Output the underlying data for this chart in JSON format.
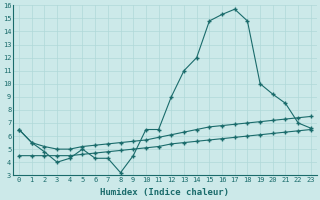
{
  "xlabel": "Humidex (Indice chaleur)",
  "xlim": [
    -0.5,
    23.5
  ],
  "ylim": [
    3,
    16
  ],
  "yticks": [
    3,
    4,
    5,
    6,
    7,
    8,
    9,
    10,
    11,
    12,
    13,
    14,
    15,
    16
  ],
  "xticks": [
    0,
    1,
    2,
    3,
    4,
    5,
    6,
    7,
    8,
    9,
    10,
    11,
    12,
    13,
    14,
    15,
    16,
    17,
    18,
    19,
    20,
    21,
    22,
    23
  ],
  "bg_color": "#cce9e9",
  "line_color": "#1a6b6b",
  "grid_color": "#b0d8d8",
  "series1": [
    6.5,
    5.5,
    4.8,
    4.0,
    4.3,
    5.0,
    4.3,
    4.3,
    3.2,
    4.5,
    6.5,
    6.5,
    9.0,
    11.0,
    12.0,
    14.8,
    15.3,
    15.7,
    14.8,
    10.0,
    9.2,
    8.5,
    7.0,
    6.6
  ],
  "series2": [
    6.5,
    5.5,
    5.2,
    5.0,
    5.0,
    5.2,
    5.3,
    5.4,
    5.5,
    5.6,
    5.7,
    5.9,
    6.1,
    6.3,
    6.5,
    6.7,
    6.8,
    6.9,
    7.0,
    7.1,
    7.2,
    7.3,
    7.4,
    7.5
  ],
  "series3": [
    4.5,
    4.5,
    4.5,
    4.5,
    4.5,
    4.6,
    4.7,
    4.8,
    4.9,
    5.0,
    5.1,
    5.2,
    5.4,
    5.5,
    5.6,
    5.7,
    5.8,
    5.9,
    6.0,
    6.1,
    6.2,
    6.3,
    6.4,
    6.5
  ]
}
